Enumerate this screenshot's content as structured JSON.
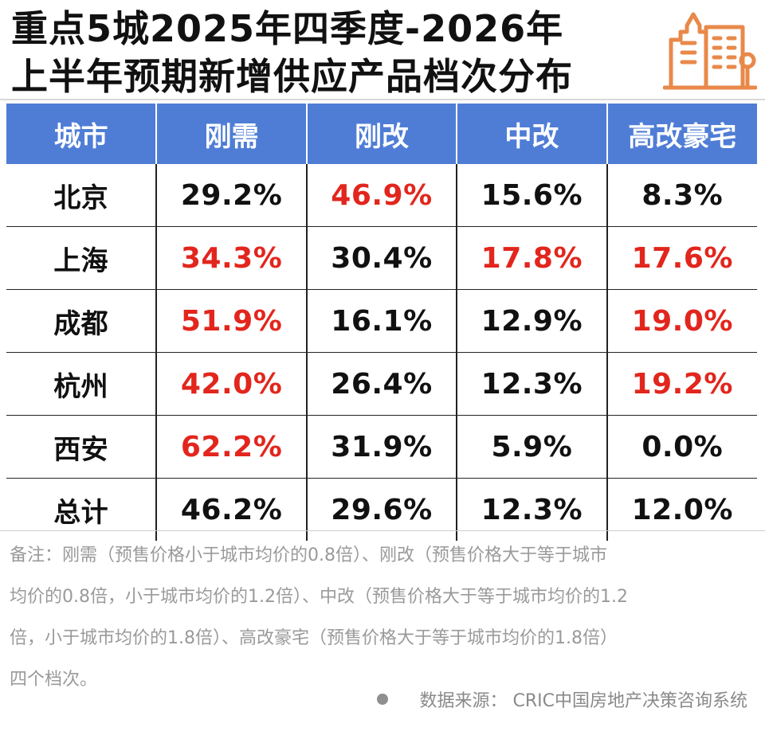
{
  "header": {
    "title_line1": "重点5城2025年四季度-2026年",
    "title_line2": "上半年预期新增供应产品档次分布",
    "logo_icon": "city-buildings-icon",
    "accent_color": "#e8894a"
  },
  "chart_data": {
    "type": "table",
    "title": "重点5城2025年四季度-2026年上半年预期新增供应产品档次分布",
    "columns": [
      "城市",
      "刚需",
      "刚改",
      "中改",
      "高改豪宅"
    ],
    "header_color": "#4f7dd6",
    "highlight_color": "#e2261d",
    "rows": [
      {
        "city": "北京",
        "values": [
          "29.2%",
          "46.9%",
          "15.6%",
          "8.3%"
        ],
        "highlight": [
          false,
          true,
          false,
          false
        ]
      },
      {
        "city": "上海",
        "values": [
          "34.3%",
          "30.4%",
          "17.8%",
          "17.6%"
        ],
        "highlight": [
          true,
          false,
          true,
          true
        ]
      },
      {
        "city": "成都",
        "values": [
          "51.9%",
          "16.1%",
          "12.9%",
          "19.0%"
        ],
        "highlight": [
          true,
          false,
          false,
          true
        ]
      },
      {
        "city": "杭州",
        "values": [
          "42.0%",
          "26.4%",
          "12.3%",
          "19.2%"
        ],
        "highlight": [
          true,
          false,
          false,
          true
        ]
      },
      {
        "city": "西安",
        "values": [
          "62.2%",
          "31.9%",
          "5.9%",
          "0.0%"
        ],
        "highlight": [
          true,
          false,
          false,
          false
        ]
      },
      {
        "city": "总计",
        "values": [
          "46.2%",
          "29.6%",
          "12.3%",
          "12.0%"
        ],
        "highlight": [
          false,
          false,
          false,
          false
        ]
      }
    ]
  },
  "notes": {
    "lines": [
      "备注：刚需（预售价格小于城市均价的0.8倍）、刚改（预售价格大于等于城市",
      "均价的0.8倍，小于城市均价的1.2倍）、中改（预售价格大于等于城市均价的1.2",
      "倍，小于城市均价的1.8倍）、高改豪宅（预售价格大于等于城市均价的1.8倍）",
      "四个档次。"
    ]
  },
  "source": {
    "text": "数据来源： CRIC中国房地产决策咨询系统"
  }
}
